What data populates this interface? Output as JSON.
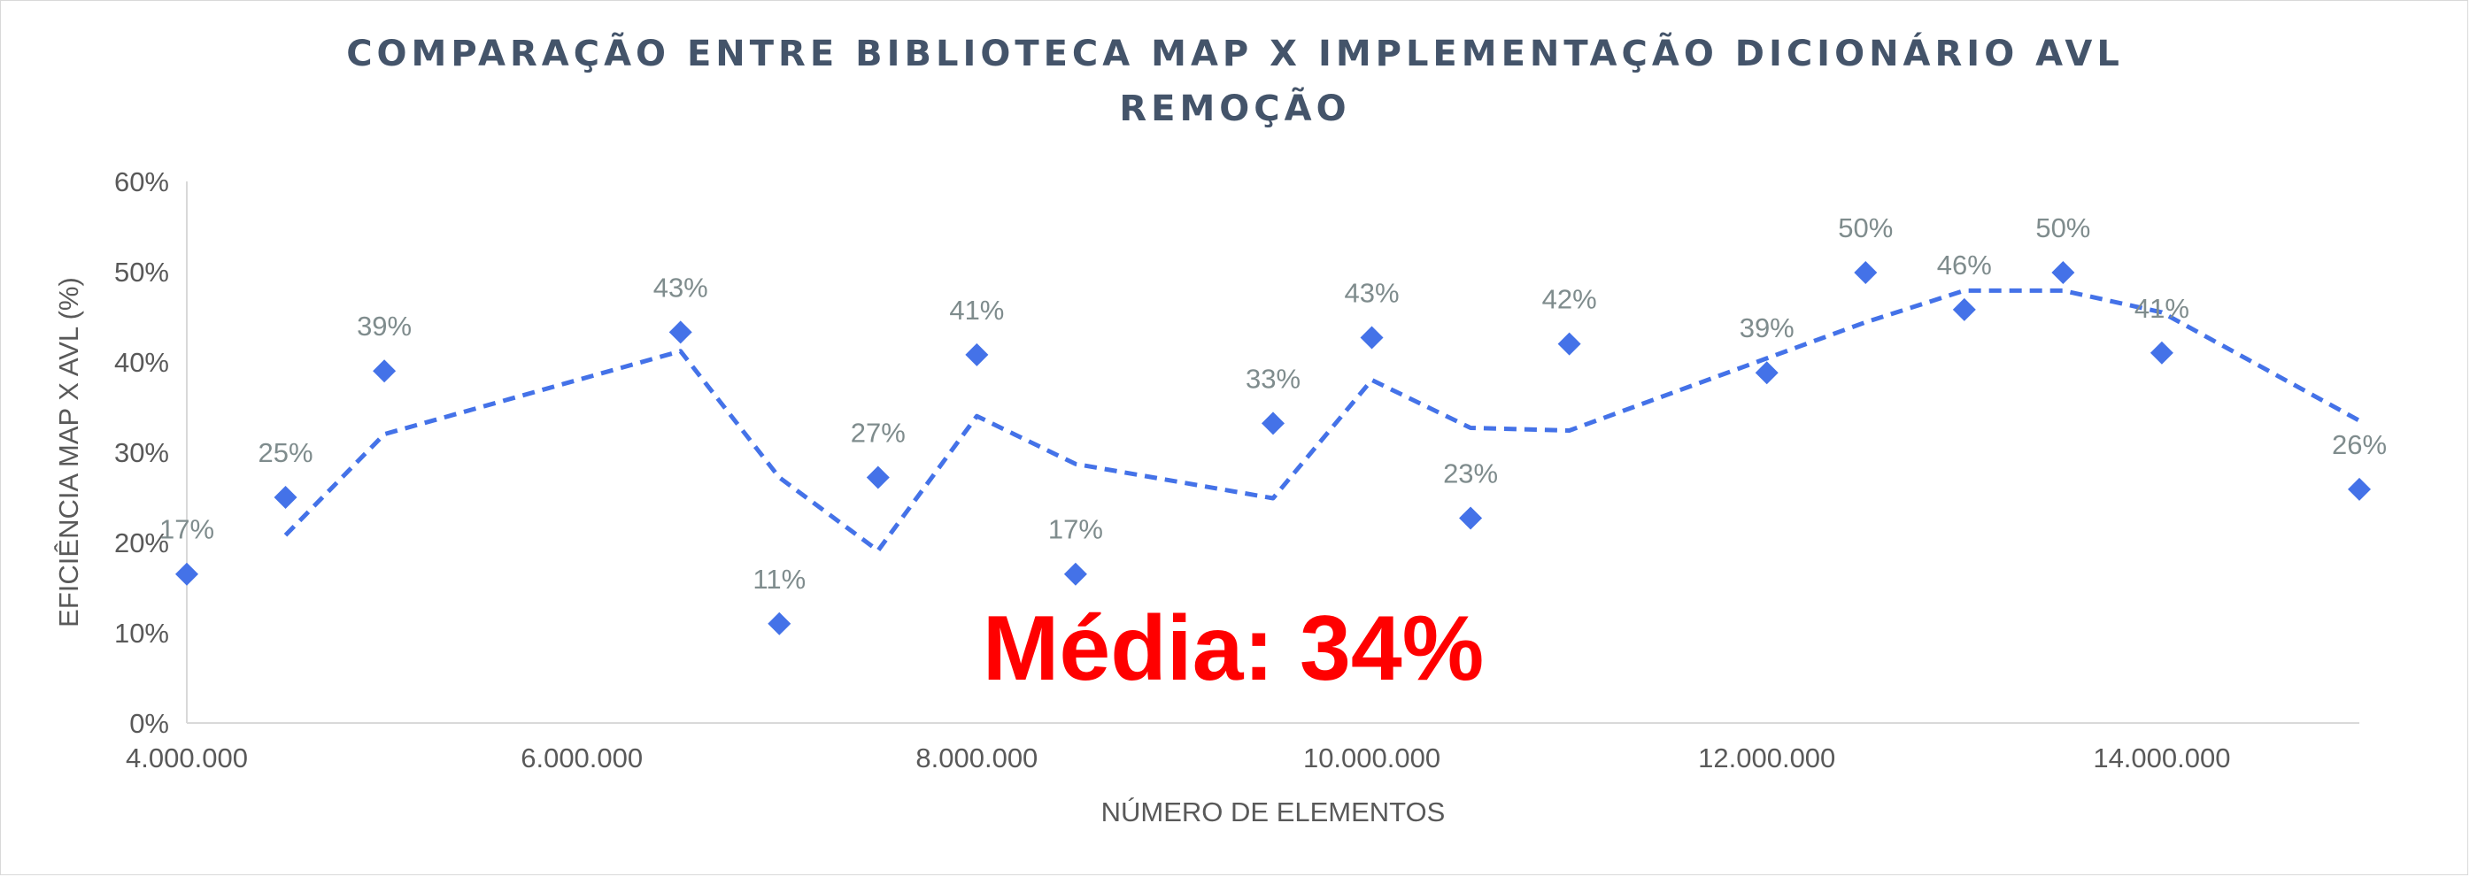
{
  "chart_data": {
    "type": "scatter",
    "title": "COMPARAÇÃO ENTRE BIBLIOTECA MAP X IMPLEMENTAÇÃO DICIONÁRIO AVL",
    "subtitle": "REMOÇÃO",
    "xlabel": "NÚMERO DE ELEMENTOS",
    "ylabel": "EFICIÊNCIA MAP X AVL (%)",
    "xlim": [
      4000000,
      15000000
    ],
    "ylim": [
      0,
      60
    ],
    "x_ticks": [
      4000000,
      6000000,
      8000000,
      10000000,
      12000000,
      14000000
    ],
    "x_tick_labels": [
      "4.000.000",
      "6.000.000",
      "8.000.000",
      "10.000.000",
      "12.000.000",
      "14.000.000"
    ],
    "y_ticks": [
      0,
      10,
      20,
      30,
      40,
      50,
      60
    ],
    "y_tick_labels": [
      "0%",
      "10%",
      "20%",
      "30%",
      "40%",
      "50%",
      "60%"
    ],
    "grid": false,
    "legend": "none",
    "marker": "diamond",
    "colors": {
      "points": "#4472e8",
      "trendline": "#4472e8",
      "annotation": "#ff0000"
    },
    "x": [
      4000000,
      4500000,
      5000000,
      6500000,
      7000000,
      7500000,
      8000000,
      8500000,
      9500000,
      10000000,
      10500000,
      11000000,
      12000000,
      12500000,
      13000000,
      13500000,
      14000000,
      15000000
    ],
    "values": [
      16.5,
      25,
      39,
      43.3,
      11,
      27.2,
      40.8,
      16.5,
      33.2,
      42.7,
      22.7,
      42,
      38.8,
      49.9,
      45.8,
      49.9,
      41,
      25.9
    ],
    "data_labels": [
      "17%",
      "25%",
      "39%",
      "43%",
      "11%",
      "27%",
      "41%",
      "17%",
      "33%",
      "43%",
      "23%",
      "42%",
      "39%",
      "50%",
      "46%",
      "50%",
      "41%",
      "26%"
    ],
    "trendline": {
      "type": "moving average (2 periods)",
      "x": [
        4500000,
        5000000,
        6500000,
        7000000,
        7500000,
        8000000,
        8500000,
        9500000,
        10000000,
        10500000,
        11000000,
        12000000,
        12500000,
        13000000,
        13500000,
        14000000,
        15000000
      ],
      "values": [
        20.8,
        32,
        41.2,
        27.2,
        19.1,
        34,
        28.7,
        24.9,
        38,
        32.7,
        32.4,
        40.4,
        44.4,
        47.9,
        47.9,
        45.5,
        33.5
      ]
    },
    "annotation": "Média: 34%"
  }
}
